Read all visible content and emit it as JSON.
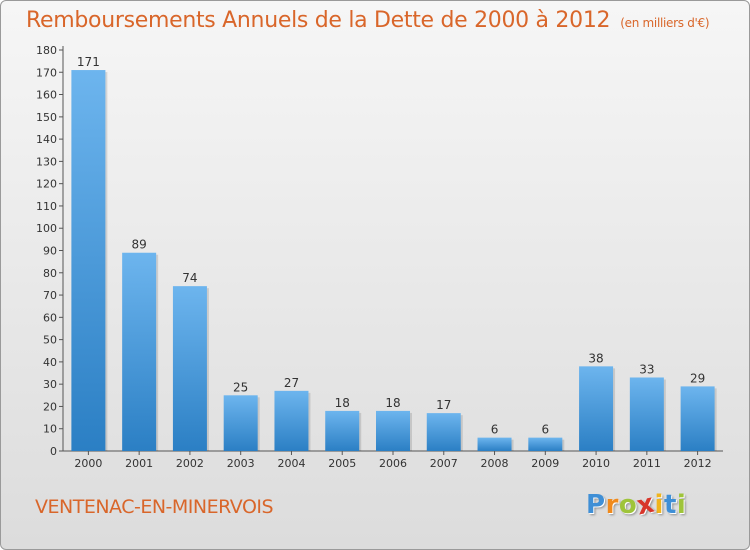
{
  "title": "Remboursements Annuels de la Dette de 2000 à 2012",
  "subtitle": "(en milliers d'€)",
  "commune": "VENTENAC-EN-MINERVOIS",
  "logo": {
    "letters": [
      "P",
      "r",
      "o",
      "x",
      "i",
      "t",
      "i"
    ],
    "colors": [
      "#3f8fd6",
      "#f08a1c",
      "#9fc43a",
      "#d8352a",
      "#f0b41c",
      "#3f8fd6",
      "#9fc43a"
    ]
  },
  "colors": {
    "title": "#d9662a",
    "bar_light": "#6db5ee",
    "bar_dark": "#2b7fc4",
    "text": "#333333"
  },
  "chart_data": {
    "type": "bar",
    "categories": [
      "2000",
      "2001",
      "2002",
      "2003",
      "2004",
      "2005",
      "2006",
      "2007",
      "2008",
      "2009",
      "2010",
      "2011",
      "2012"
    ],
    "values": [
      171,
      89,
      74,
      25,
      27,
      18,
      18,
      17,
      6,
      6,
      38,
      33,
      29
    ],
    "ylim": [
      0,
      180
    ],
    "yticks": [
      0,
      10,
      20,
      30,
      40,
      50,
      60,
      70,
      80,
      90,
      100,
      110,
      120,
      130,
      140,
      150,
      160,
      170,
      180
    ],
    "grid": false,
    "data_labels": true
  }
}
